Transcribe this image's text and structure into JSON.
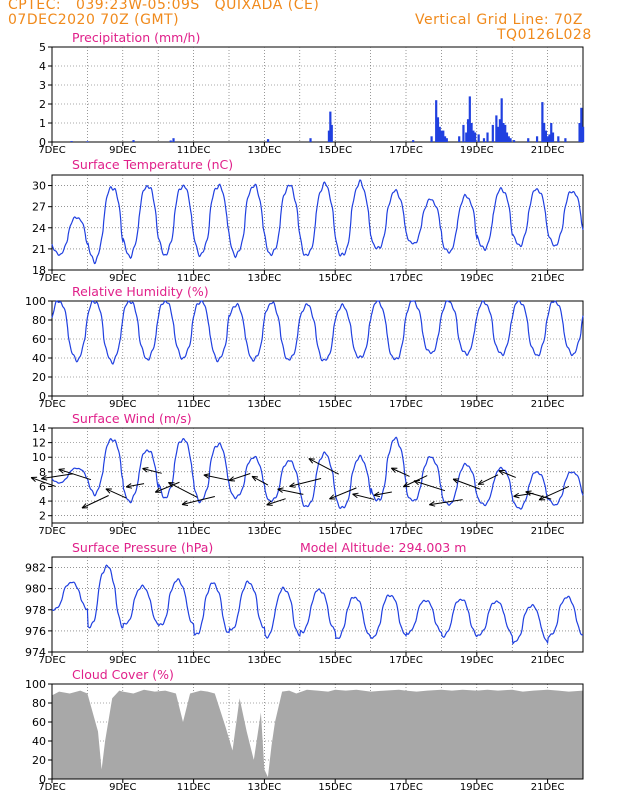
{
  "header": {
    "line1": "CPTEC:   039:23W-05:09S   QUIXADA (CE)",
    "line2": "07DEC2020 70Z (GMT)",
    "grid_note": "Vertical Grid Line: 70Z",
    "code": "TQ0126L028"
  },
  "colors": {
    "header": "#f08a1c",
    "title": "#e0208a",
    "series": "#2040e0",
    "cloud": "#a8a8a8"
  },
  "x_labels": [
    "7DEC",
    "9DEC",
    "11DEC",
    "13DEC",
    "15DEC",
    "17DEC",
    "19DEC",
    "21DEC"
  ],
  "chart_data": [
    {
      "type": "bar",
      "title": "Precipitation (mm/h)",
      "ylim": [
        0,
        5
      ],
      "yticks": [
        0,
        1,
        2,
        3,
        4,
        5
      ],
      "x": [
        7.55,
        8.0,
        9.3,
        10.35,
        10.43,
        13.1,
        14.3,
        14.82,
        14.86,
        14.9,
        17.2,
        17.72,
        17.85,
        17.9,
        17.95,
        18.0,
        18.05,
        18.1,
        18.15,
        18.5,
        18.62,
        18.7,
        18.75,
        18.8,
        18.85,
        18.9,
        18.95,
        19.05,
        19.2,
        19.3,
        19.45,
        19.55,
        19.6,
        19.65,
        19.7,
        19.75,
        19.8,
        19.85,
        19.9,
        19.95,
        20.05,
        20.45,
        20.7,
        20.85,
        20.9,
        20.95,
        21.0,
        21.05,
        21.1,
        21.15,
        21.3,
        21.5,
        21.9,
        21.95,
        22.0
      ],
      "values": [
        0.05,
        0.04,
        0.1,
        0.08,
        0.2,
        0.15,
        0.2,
        0.6,
        1.6,
        0.9,
        0.1,
        0.3,
        2.2,
        1.3,
        0.8,
        0.6,
        0.6,
        0.3,
        0.2,
        0.3,
        0.9,
        0.5,
        1.2,
        2.4,
        1.0,
        0.6,
        0.5,
        0.4,
        0.2,
        0.5,
        0.9,
        1.4,
        0.8,
        1.2,
        2.3,
        1.0,
        0.9,
        0.5,
        0.3,
        0.2,
        0.1,
        0.2,
        0.3,
        2.1,
        1.0,
        0.6,
        0.3,
        0.4,
        1.0,
        0.5,
        0.3,
        0.2,
        1.0,
        1.8,
        0.8
      ]
    },
    {
      "type": "line",
      "title": "Surface Temperature (nC)",
      "ylim": [
        18,
        31.5
      ],
      "yticks": [
        18,
        21,
        24,
        27,
        30
      ],
      "max": [
        25.5,
        29.8,
        30.0,
        30.0,
        30.0,
        30.0,
        30.0,
        30.2,
        30.4,
        29.2,
        28.0,
        28.5,
        29.5,
        29.5,
        29.2,
        28.0,
        24.5,
        25.5,
        29.0,
        29.2
      ],
      "min": [
        20.2,
        19.3,
        20.0,
        20.2,
        20.2,
        20.1,
        20.2,
        20.0,
        20.0,
        21.0,
        21.7,
        20.5,
        21.0,
        21.5,
        21.5,
        21.8,
        21.0,
        21.5,
        21.8,
        21.5
      ]
    },
    {
      "type": "line",
      "title": "Relative Humidity (%)",
      "ylim": [
        0,
        100
      ],
      "yticks": [
        0,
        20,
        40,
        60,
        80,
        100
      ],
      "max": [
        100,
        100,
        100,
        100,
        100,
        96,
        98,
        96,
        95,
        100,
        100,
        100,
        99,
        100,
        100,
        100,
        100,
        100,
        100,
        100
      ],
      "min": [
        38,
        36,
        39,
        40,
        38,
        38,
        38,
        37,
        40,
        38,
        45,
        44,
        44,
        43,
        44,
        42,
        62,
        60,
        45,
        42
      ]
    },
    {
      "type": "line",
      "title": "Surface Wind (m/s)",
      "ylim": [
        1,
        14
      ],
      "yticks": [
        2,
        4,
        6,
        8,
        10,
        12,
        14
      ],
      "max": [
        8.5,
        12.5,
        11.0,
        12.5,
        11.8,
        10.0,
        9.5,
        10.5,
        10.0,
        12.5,
        10.0,
        9.0,
        8.5,
        8.0,
        8.0,
        8.5,
        8.0,
        8.5,
        10.0,
        10.0
      ],
      "min": [
        6.5,
        5.0,
        4.0,
        4.5,
        4.0,
        4.5,
        4.0,
        3.2,
        3.0,
        4.0,
        4.0,
        3.5,
        3.5,
        3.0,
        3.5,
        2.5,
        4.0,
        3.0,
        3.0,
        4.0
      ],
      "vectors_note": "wind barbs drawn as arrows every ~12h"
    },
    {
      "type": "line",
      "title": "Surface Pressure (hPa)",
      "annotation": "Model Altitude: 294.003 m",
      "ylim": [
        974,
        983
      ],
      "yticks": [
        974,
        976,
        978,
        980,
        982
      ],
      "max": [
        980.6,
        982.1,
        980.2,
        980.8,
        980.5,
        980.6,
        980.0,
        979.9,
        979.2,
        979.4,
        978.9,
        979.0,
        978.8,
        978.4,
        979.2,
        978.9,
        978.5,
        979.6,
        978.8,
        978.5
      ],
      "min": [
        978.0,
        976.3,
        976.6,
        976.5,
        975.6,
        976.1,
        975.4,
        975.9,
        975.3,
        975.4,
        975.8,
        975.5,
        975.6,
        974.9,
        975.5,
        975.6,
        974.9,
        975.0,
        975.7,
        974.5
      ]
    },
    {
      "type": "area",
      "title": "Cloud Cover (%)",
      "ylim": [
        0,
        100
      ],
      "yticks": [
        0,
        20,
        40,
        60,
        80,
        100
      ],
      "x": [
        7.0,
        7.2,
        7.5,
        7.8,
        8.0,
        8.3,
        8.4,
        8.5,
        8.7,
        8.9,
        9.0,
        9.3,
        9.6,
        9.9,
        10.2,
        10.5,
        10.7,
        10.9,
        11.2,
        11.4,
        11.6,
        11.9,
        12.1,
        12.3,
        12.5,
        12.7,
        12.9,
        13.0,
        13.1,
        13.2,
        13.3,
        13.5,
        13.7,
        13.9,
        14.2,
        14.5,
        14.8,
        15.0,
        15.3,
        15.6,
        16.0,
        16.4,
        16.8,
        17.0,
        17.3,
        17.6,
        18.0,
        18.3,
        18.6,
        19.0,
        19.3,
        19.6,
        20.0,
        20.3,
        20.6,
        21.0,
        21.3,
        21.6,
        22.0
      ],
      "values": [
        88,
        92,
        90,
        93,
        90,
        50,
        10,
        40,
        85,
        93,
        92,
        90,
        94,
        92,
        93,
        90,
        60,
        90,
        93,
        92,
        90,
        55,
        30,
        85,
        50,
        20,
        70,
        10,
        2,
        35,
        60,
        92,
        93,
        90,
        94,
        93,
        92,
        94,
        93,
        94,
        92,
        93,
        94,
        93,
        92,
        93,
        94,
        93,
        94,
        93,
        94,
        93,
        94,
        92,
        93,
        94,
        93,
        92,
        93
      ]
    }
  ]
}
